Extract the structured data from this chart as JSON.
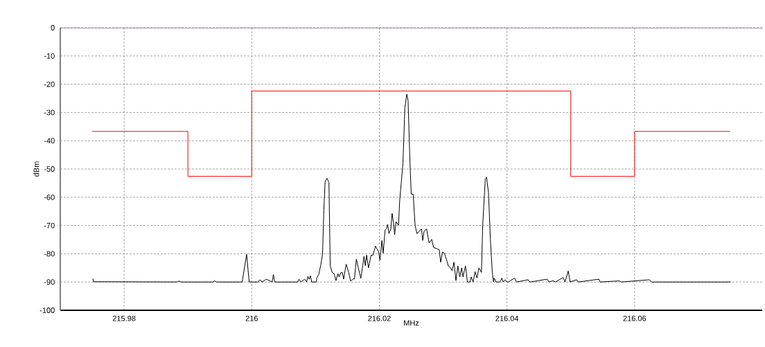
{
  "chart_data": {
    "type": "line",
    "xlabel": "MHz",
    "ylabel": "dBm",
    "xlim": [
      215.97,
      216.08
    ],
    "ylim": [
      -100,
      0
    ],
    "xticks": [
      215.98,
      216,
      216.02,
      216.04,
      216.06
    ],
    "yticks": [
      0,
      -10,
      -20,
      -30,
      -40,
      -50,
      -60,
      -70,
      -80,
      -90,
      -100
    ],
    "grid": true,
    "series": [
      {
        "color": "#ff0000",
        "x": [
          215.975,
          215.99,
          215.99,
          216,
          216,
          216.05,
          216.05,
          216.06,
          216.06,
          216.075
        ],
        "values": [
          -36.7,
          -36.7,
          -52.6,
          -52.6,
          -22.4,
          -22.4,
          -52.6,
          -52.6,
          -36.7,
          -36.7
        ]
      },
      {
        "color": "#000000",
        "x": [
          215.9751,
          215.9752,
          215.9883,
          215.9886,
          215.9889,
          215.9939,
          215.9942,
          215.9945,
          215.9985,
          215.9992,
          215.9996,
          216.001,
          216.0013,
          216.0016,
          216.0023,
          216.0032,
          216.0034,
          216.0036,
          216.0072,
          216.0074,
          216.0077,
          216.0083,
          216.0086,
          216.0088,
          216.009,
          216.0092,
          216.0094,
          216.0101,
          216.0102,
          216.0105,
          216.0108,
          216.0111,
          216.0113,
          216.0115,
          216.0118,
          216.0121,
          216.0123,
          216.0126,
          216.0129,
          216.0132,
          216.0135,
          216.0137,
          216.014,
          216.0142,
          216.0144,
          216.0148,
          216.0152,
          216.0155,
          216.0159,
          216.0161,
          216.0164,
          216.0167,
          216.0171,
          216.0174,
          216.0176,
          216.0178,
          216.018,
          216.0183,
          216.0187,
          216.019,
          216.0194,
          216.0199,
          216.0201,
          216.0204,
          216.0206,
          216.0209,
          216.0211,
          216.0213,
          216.0215,
          216.0218,
          216.022,
          216.0222,
          216.0224,
          216.0226,
          216.023,
          216.0232,
          216.0237,
          216.024,
          216.0243,
          216.0245,
          216.0248,
          216.025,
          216.0253,
          216.0256,
          216.0259,
          216.0262,
          216.0266,
          216.0268,
          216.027,
          216.0274,
          216.0278,
          216.0282,
          216.0285,
          216.029,
          216.0294,
          216.0296,
          216.0299,
          216.0302,
          216.0305,
          216.0308,
          216.0311,
          216.0314,
          216.0317,
          216.032,
          216.0323,
          216.0326,
          216.0329,
          216.0331,
          216.0335,
          216.0338,
          216.0342,
          216.0344,
          216.0347,
          216.035,
          216.0353,
          216.0356,
          216.036,
          216.0362,
          216.0366,
          216.0368,
          216.0371,
          216.0374,
          216.0377,
          216.0379,
          216.038,
          216.0383,
          216.0389,
          216.0392,
          216.0394,
          216.0397,
          216.04,
          216.0402,
          216.0412,
          216.0415,
          216.0433,
          216.0436,
          216.0463,
          216.0466,
          216.0472,
          216.0476,
          216.0488,
          216.0491,
          216.0496,
          216.0499,
          216.0509,
          216.0512,
          216.0544,
          216.0546,
          216.0576,
          216.0579,
          216.0623,
          216.0627,
          216.075
        ],
        "values": [
          -88.8,
          -89.9,
          -90,
          -89.6,
          -90,
          -90,
          -89.6,
          -90,
          -90,
          -80.2,
          -90,
          -90,
          -89.2,
          -90,
          -89,
          -90,
          -87.3,
          -90,
          -90,
          -89,
          -90,
          -89,
          -90,
          -88,
          -89,
          -87.8,
          -90,
          -90,
          -88.6,
          -87.3,
          -84.2,
          -80.1,
          -64.6,
          -54.4,
          -53.3,
          -54.8,
          -84.2,
          -86.6,
          -87,
          -89.5,
          -87,
          -88.2,
          -86.6,
          -86.6,
          -89,
          -83.7,
          -86.6,
          -89.7,
          -88.9,
          -88.9,
          -81.9,
          -85,
          -88.7,
          -84.2,
          -80.9,
          -84.2,
          -80.5,
          -85,
          -80.5,
          -80.5,
          -77.3,
          -79.4,
          -82.3,
          -75.3,
          -79.8,
          -71.6,
          -71.2,
          -69.6,
          -72.9,
          -71.2,
          -65.7,
          -68.7,
          -73.3,
          -68.7,
          -69.9,
          -60.9,
          -47.9,
          -28.3,
          -23.5,
          -25.8,
          -47.9,
          -58.9,
          -58.9,
          -69.9,
          -72.9,
          -72.1,
          -71.2,
          -75.3,
          -72.1,
          -71.2,
          -76.2,
          -74.9,
          -77.8,
          -78.2,
          -78.6,
          -83,
          -79.4,
          -79.8,
          -81.9,
          -84.3,
          -84.8,
          -86,
          -83,
          -89.5,
          -84.3,
          -88.2,
          -85,
          -88.2,
          -84.3,
          -90,
          -90,
          -88.2,
          -90,
          -86.3,
          -88.6,
          -85,
          -86.6,
          -69.9,
          -53.6,
          -52.9,
          -58.3,
          -74.9,
          -86.6,
          -90,
          -88.6,
          -90,
          -90,
          -88.6,
          -90,
          -89.2,
          -90,
          -90,
          -88.6,
          -90,
          -89.2,
          -90,
          -89,
          -90,
          -89.5,
          -90,
          -88.4,
          -90,
          -86.1,
          -90,
          -89.2,
          -90,
          -89,
          -90,
          -89.6,
          -90,
          -89.2,
          -90,
          -90
        ]
      }
    ]
  }
}
